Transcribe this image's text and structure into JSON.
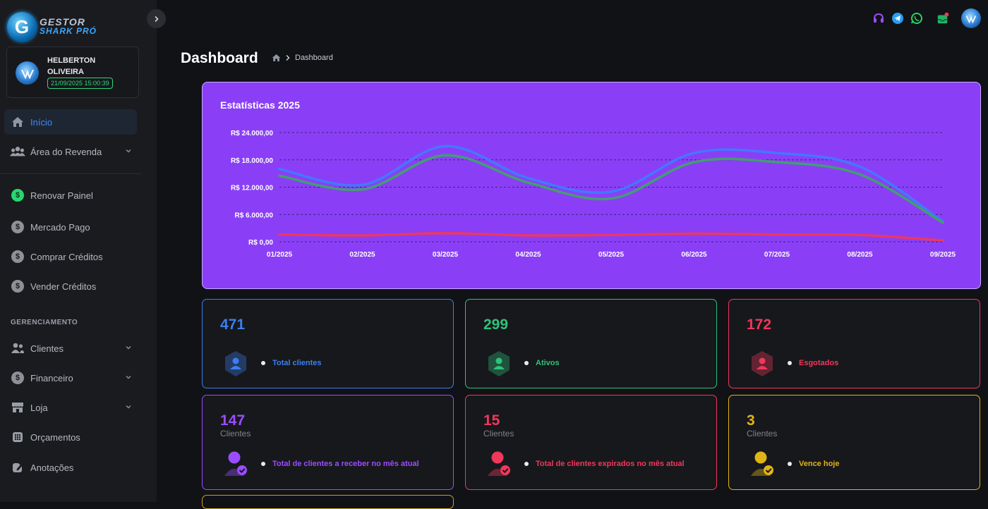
{
  "brand": {
    "line1": "GESTOR",
    "line2": "SHARK PRÓ",
    "badge_letter": "G"
  },
  "user": {
    "name": "HELBERTON OLIVEIRA",
    "datetime": "21/09/2025 15:00:39"
  },
  "sidebar": {
    "items_top": [
      {
        "label": "Início",
        "icon": "home-icon",
        "active": true
      },
      {
        "label": "Área do Revenda",
        "icon": "users-icon",
        "chevron": true
      }
    ],
    "items_mid": [
      {
        "label": "Renovar Painel",
        "icon": "dollar-icon",
        "highlight": true
      },
      {
        "label": "Mercado Pago",
        "icon": "dollar-icon"
      },
      {
        "label": "Comprar Créditos",
        "icon": "dollar-icon"
      },
      {
        "label": "Vender Créditos",
        "icon": "dollar-icon"
      }
    ],
    "section_label": "GERENCIAMENTO",
    "items_bottom": [
      {
        "label": "Clientes",
        "icon": "users-icon",
        "chevron": true
      },
      {
        "label": "Financeiro",
        "icon": "dollar-icon",
        "chevron": true
      },
      {
        "label": "Loja",
        "icon": "store-icon",
        "chevron": true
      },
      {
        "label": "Orçamentos",
        "icon": "calculator-icon"
      },
      {
        "label": "Anotações",
        "icon": "note-icon"
      }
    ]
  },
  "header": {
    "title": "Dashboard",
    "breadcrumb": "Dashboard"
  },
  "colors": {
    "accent_blue": "#3b8cff",
    "chart_bg": "#8a3ff7",
    "green": "#2fc27a",
    "red": "#f0385a",
    "purple": "#9a4dff",
    "gold": "#e0b318"
  },
  "chart_data": {
    "type": "line",
    "title": "Estatísticas 2025",
    "categories": [
      "01/2025",
      "02/2025",
      "03/2025",
      "04/2025",
      "05/2025",
      "06/2025",
      "07/2025",
      "08/2025",
      "09/2025"
    ],
    "y_ticks": [
      "R$ 24.000,00",
      "R$ 18.000,00",
      "R$ 12.000,00",
      "R$ 6.000,00",
      "R$ 0,00"
    ],
    "ylim": [
      0,
      24000
    ],
    "grid": true,
    "series": [
      {
        "color": "#3f7bff",
        "values": [
          16000,
          12500,
          21000,
          14000,
          11000,
          19500,
          19500,
          16500,
          4500
        ]
      },
      {
        "color": "#3ea36a",
        "values": [
          14500,
          11500,
          19000,
          13000,
          9500,
          17500,
          17500,
          14800,
          4200
        ]
      },
      {
        "color": "#f0385a",
        "values": [
          1600,
          1400,
          1900,
          1400,
          1500,
          1800,
          1600,
          1500,
          300
        ]
      }
    ]
  },
  "stats": [
    {
      "value": "471",
      "label": "Total clientes",
      "color": "#3b7ff0"
    },
    {
      "value": "299",
      "label": "Ativos",
      "color": "#2fc27a"
    },
    {
      "value": "172",
      "label": "Esgotados",
      "color": "#f0385a"
    },
    {
      "value": "147",
      "sub": "Clientes",
      "label": "Total de clientes a receber no mês atual",
      "color": "#9a4dff"
    },
    {
      "value": "15",
      "sub": "Clientes",
      "label": "Total de clientes expirados no mês atual",
      "color": "#f0385a"
    },
    {
      "value": "3",
      "sub": "Clientes",
      "label": "Vence hoje",
      "color": "#e0b318"
    }
  ]
}
